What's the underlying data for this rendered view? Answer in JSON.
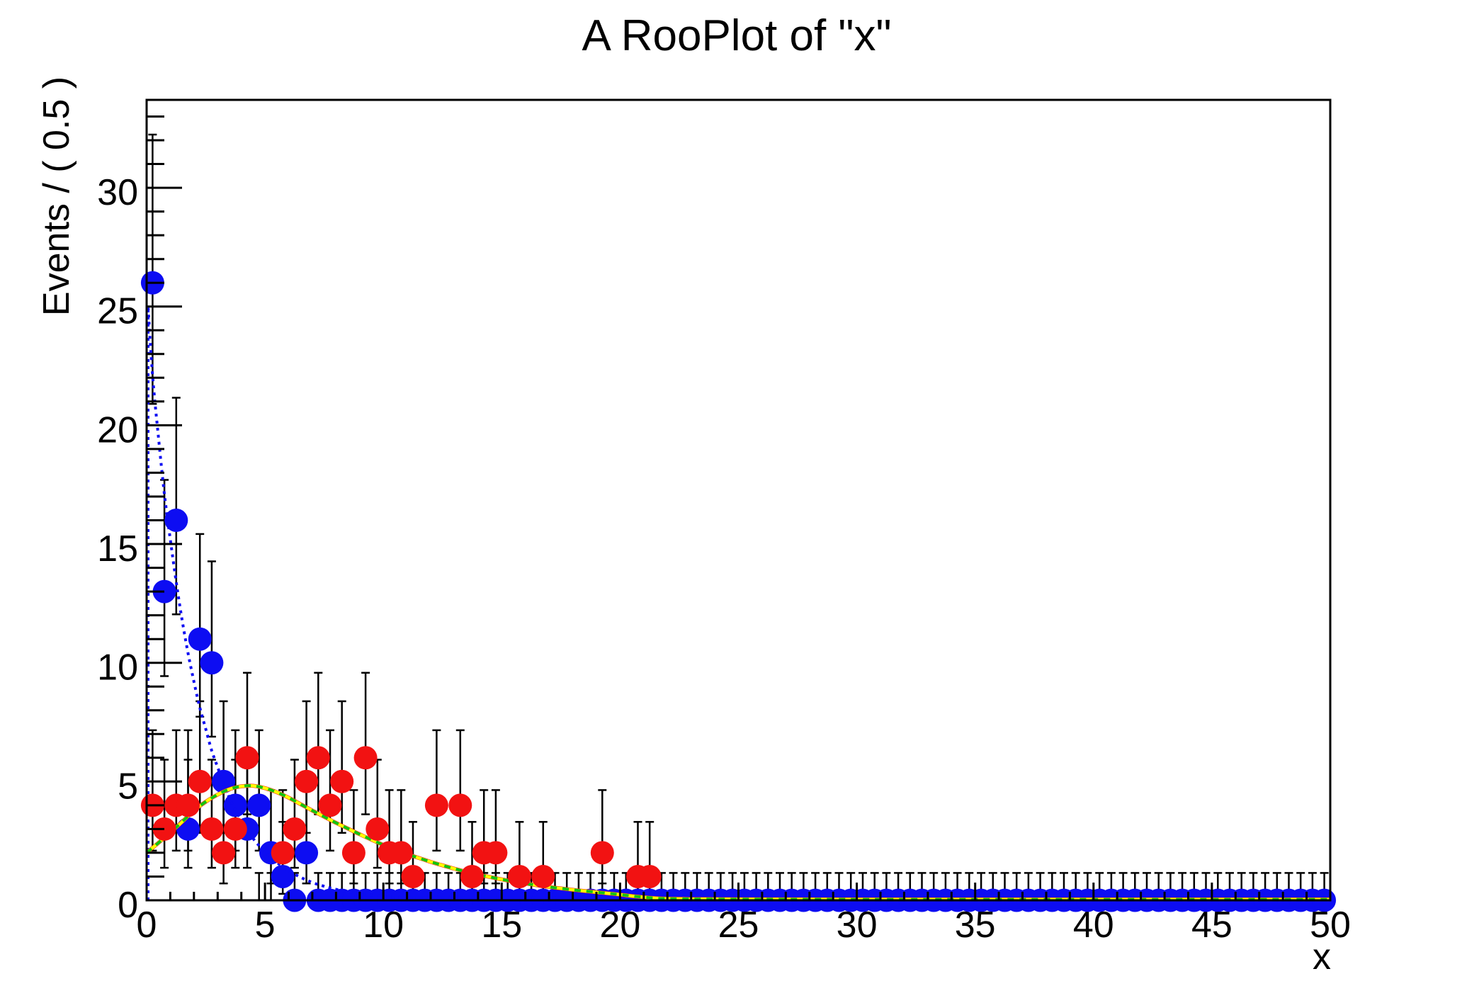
{
  "chart_data": {
    "type": "scatter",
    "title": "A RooPlot of \"x\"",
    "xlabel": "x",
    "ylabel": "Events / ( 0.5 )",
    "xlim": [
      0,
      50
    ],
    "ylim": [
      0,
      33.7
    ],
    "xticks_major": [
      0,
      5,
      10,
      15,
      20,
      25,
      30,
      35,
      40,
      45,
      50
    ],
    "yticks_major": [
      0,
      5,
      10,
      15,
      20,
      25,
      30
    ],
    "minor_tick_step": 1,
    "bin_width": 0.5,
    "colors": {
      "blue": "#0d0df2",
      "red": "#f21212",
      "yellow": "#ffff00",
      "green": "#12c112",
      "axis": "#000000"
    },
    "series": [
      {
        "name": "data_blue",
        "kind": "points",
        "color_key": "blue",
        "marker": "circle",
        "points": [
          [
            0.25,
            26
          ],
          [
            0.75,
            13
          ],
          [
            1.25,
            16
          ],
          [
            1.75,
            3
          ],
          [
            2.25,
            11
          ],
          [
            2.75,
            10
          ],
          [
            3.25,
            5
          ],
          [
            3.75,
            4
          ],
          [
            4.25,
            3
          ],
          [
            4.75,
            4
          ],
          [
            5.25,
            2
          ],
          [
            5.75,
            1
          ],
          [
            6.25,
            0
          ],
          [
            6.75,
            2
          ]
        ],
        "zero_marker_run": [
          7.25,
          49.75
        ]
      },
      {
        "name": "data_red",
        "kind": "points",
        "color_key": "red",
        "marker": "circle",
        "points": [
          [
            0.25,
            4
          ],
          [
            0.75,
            3
          ],
          [
            1.25,
            4
          ],
          [
            1.75,
            4
          ],
          [
            2.25,
            5
          ],
          [
            2.75,
            3
          ],
          [
            3.25,
            2
          ],
          [
            3.75,
            3
          ],
          [
            4.25,
            6
          ],
          [
            5.75,
            2
          ],
          [
            6.25,
            3
          ],
          [
            6.75,
            5
          ],
          [
            7.25,
            6
          ],
          [
            7.75,
            4
          ],
          [
            8.25,
            5
          ],
          [
            8.75,
            2
          ],
          [
            9.25,
            6
          ],
          [
            9.75,
            3
          ],
          [
            10.25,
            2
          ],
          [
            10.75,
            2
          ],
          [
            11.25,
            1
          ],
          [
            12.25,
            4
          ],
          [
            13.25,
            4
          ],
          [
            13.75,
            1
          ],
          [
            14.25,
            2
          ],
          [
            14.75,
            2
          ],
          [
            15.75,
            1
          ],
          [
            16.75,
            1
          ],
          [
            19.25,
            2
          ],
          [
            20.75,
            1
          ],
          [
            21.25,
            1
          ]
        ],
        "zero_error_bins": [
          4.75,
          5.25,
          11.75,
          12.75,
          15.25,
          16.25,
          17.25,
          17.75,
          18.25,
          18.75,
          19.75,
          20.25,
          21.75
        ],
        "zero_error_run": [
          22.25,
          49.75
        ]
      }
    ],
    "bump_curve_points": [
      [
        0,
        2.0
      ],
      [
        0.5,
        2.42
      ],
      [
        1,
        2.85
      ],
      [
        1.5,
        3.3
      ],
      [
        2,
        3.78
      ],
      [
        2.5,
        4.15
      ],
      [
        3,
        4.45
      ],
      [
        3.5,
        4.68
      ],
      [
        4,
        4.8
      ],
      [
        4.5,
        4.82
      ],
      [
        5,
        4.72
      ],
      [
        5.5,
        4.55
      ],
      [
        6,
        4.32
      ],
      [
        6.5,
        4.05
      ],
      [
        7,
        3.78
      ],
      [
        7.5,
        3.52
      ],
      [
        8,
        3.26
      ],
      [
        8.5,
        3.02
      ],
      [
        9,
        2.78
      ],
      [
        9.5,
        2.55
      ],
      [
        10,
        2.33
      ],
      [
        10.5,
        2.13
      ],
      [
        11,
        1.95
      ],
      [
        11.5,
        1.78
      ],
      [
        12,
        1.62
      ],
      [
        12.5,
        1.47
      ],
      [
        13,
        1.33
      ],
      [
        13.5,
        1.2
      ],
      [
        14,
        1.08
      ],
      [
        14.5,
        0.98
      ],
      [
        15,
        0.88
      ],
      [
        15.5,
        0.79
      ],
      [
        16,
        0.71
      ],
      [
        16.5,
        0.63
      ],
      [
        17,
        0.56
      ],
      [
        17.5,
        0.5
      ],
      [
        18,
        0.44
      ],
      [
        18.5,
        0.39
      ],
      [
        19,
        0.34
      ],
      [
        19.5,
        0.29
      ],
      [
        20,
        0.24
      ],
      [
        20.5,
        0.18
      ],
      [
        21,
        0.13
      ],
      [
        21.5,
        0.09
      ],
      [
        22,
        0.07
      ],
      [
        23,
        0.055
      ],
      [
        24,
        0.05
      ],
      [
        25,
        0.045
      ],
      [
        30,
        0.04
      ],
      [
        40,
        0.04
      ],
      [
        50,
        0.04
      ]
    ],
    "curves": [
      {
        "name": "model_blue_exponential",
        "color_key": "blue",
        "style": "dotted",
        "width": 4,
        "left_edge_vertical": true,
        "points": [
          [
            0,
            25
          ],
          [
            0.25,
            22.1
          ],
          [
            0.5,
            19.5
          ],
          [
            0.75,
            17.1
          ],
          [
            1,
            15.2
          ],
          [
            1.25,
            13.4
          ],
          [
            1.5,
            11.8
          ],
          [
            1.75,
            10.4
          ],
          [
            2,
            9.2
          ],
          [
            2.25,
            8.1
          ],
          [
            2.5,
            7.2
          ],
          [
            2.75,
            6.3
          ],
          [
            3,
            5.6
          ],
          [
            3.25,
            4.9
          ],
          [
            3.5,
            4.3
          ],
          [
            3.75,
            3.8
          ],
          [
            4,
            3.4
          ],
          [
            4.5,
            2.6
          ],
          [
            5,
            2.05
          ],
          [
            5.5,
            1.6
          ],
          [
            6,
            1.24
          ],
          [
            6.5,
            0.97
          ],
          [
            7,
            0.75
          ],
          [
            7.5,
            0.59
          ],
          [
            8,
            0.46
          ],
          [
            9,
            0.28
          ],
          [
            10,
            0.17
          ],
          [
            11,
            0.1
          ],
          [
            12,
            0.06
          ],
          [
            14,
            0.02
          ],
          [
            16,
            0.01
          ],
          [
            20,
            0.005
          ],
          [
            25,
            0.003
          ],
          [
            50,
            0.003
          ]
        ]
      },
      {
        "name": "model_red_total",
        "color_key": "red",
        "style": "solid",
        "width": 5.5,
        "points": "bump_curve_points"
      },
      {
        "name": "model_yellow_component",
        "color_key": "yellow",
        "style": "solid",
        "width": 4.5,
        "points": "bump_curve_points"
      },
      {
        "name": "model_green_component",
        "color_key": "green",
        "style": "dashed",
        "width": 4,
        "points": "bump_curve_points"
      }
    ],
    "poisson_errors": {
      "0": [
        0,
        1.15
      ],
      "1": [
        0.27,
        3.3
      ],
      "2": [
        0.71,
        4.64
      ],
      "3": [
        1.37,
        5.92
      ],
      "4": [
        2.09,
        7.16
      ],
      "5": [
        2.84,
        8.38
      ],
      "6": [
        3.62,
        9.58
      ],
      "10": [
        6.89,
        14.27
      ],
      "11": [
        7.73,
        15.42
      ],
      "13": [
        9.44,
        17.7
      ],
      "16": [
        12.04,
        21.16
      ],
      "26": [
        20.9,
        32.24
      ]
    },
    "legend": null,
    "grid": false
  }
}
